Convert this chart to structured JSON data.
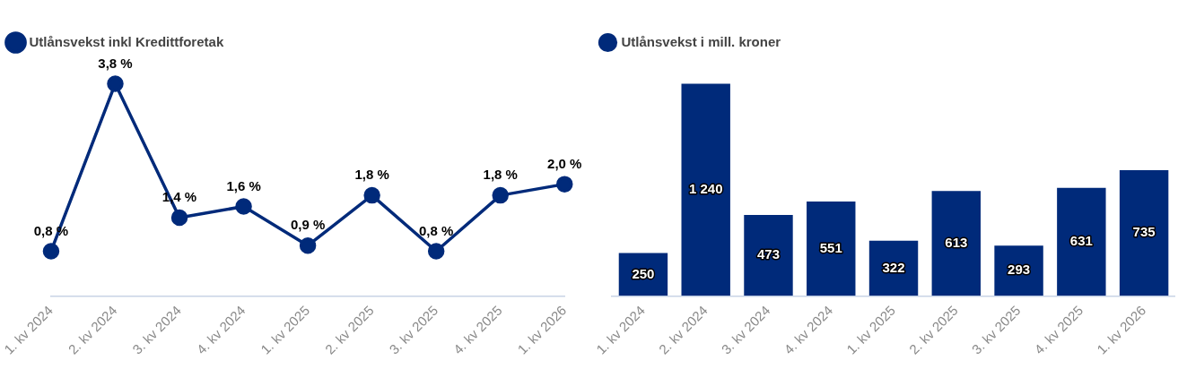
{
  "chart_data": [
    {
      "type": "line",
      "legend": "top left",
      "marker": "circle",
      "line_style": "solid",
      "categories": [
        "1. kv 2024",
        "2. kv 2024",
        "3. kv 2024",
        "4. kv 2024",
        "1. kv 2025",
        "2. kv 2025",
        "3. kv 2025",
        "4. kv 2025",
        "1. kv 2026"
      ],
      "series": [
        {
          "name": "Utlånsvekst inkl Kredittforetak",
          "color": "#002a7a",
          "values": [
            0.8,
            3.8,
            1.4,
            1.6,
            0.9,
            1.8,
            0.8,
            1.8,
            2.0
          ],
          "value_labels": [
            "0,8 %",
            "3,8 %",
            "1,4 %",
            "1,6 %",
            "0,9 %",
            "1,8 %",
            "0,8 %",
            "1,8 %",
            "2,0 %"
          ]
        }
      ]
    },
    {
      "type": "bar",
      "legend": "top left",
      "categories": [
        "1. kv 2024",
        "2. kv 2024",
        "3. kv 2024",
        "4. kv 2024",
        "1. kv 2025",
        "2. kv 2025",
        "3. kv 2025",
        "4. kv 2025",
        "1. kv 2026"
      ],
      "series": [
        {
          "name": "Utlånsvekst i mill. kroner",
          "color": "#002a7a",
          "values": [
            250,
            1240,
            473,
            551,
            322,
            613,
            293,
            631,
            735
          ],
          "value_labels": [
            "250",
            "1 240",
            "473",
            "551",
            "322",
            "613",
            "293",
            "631",
            "735"
          ]
        }
      ]
    }
  ]
}
